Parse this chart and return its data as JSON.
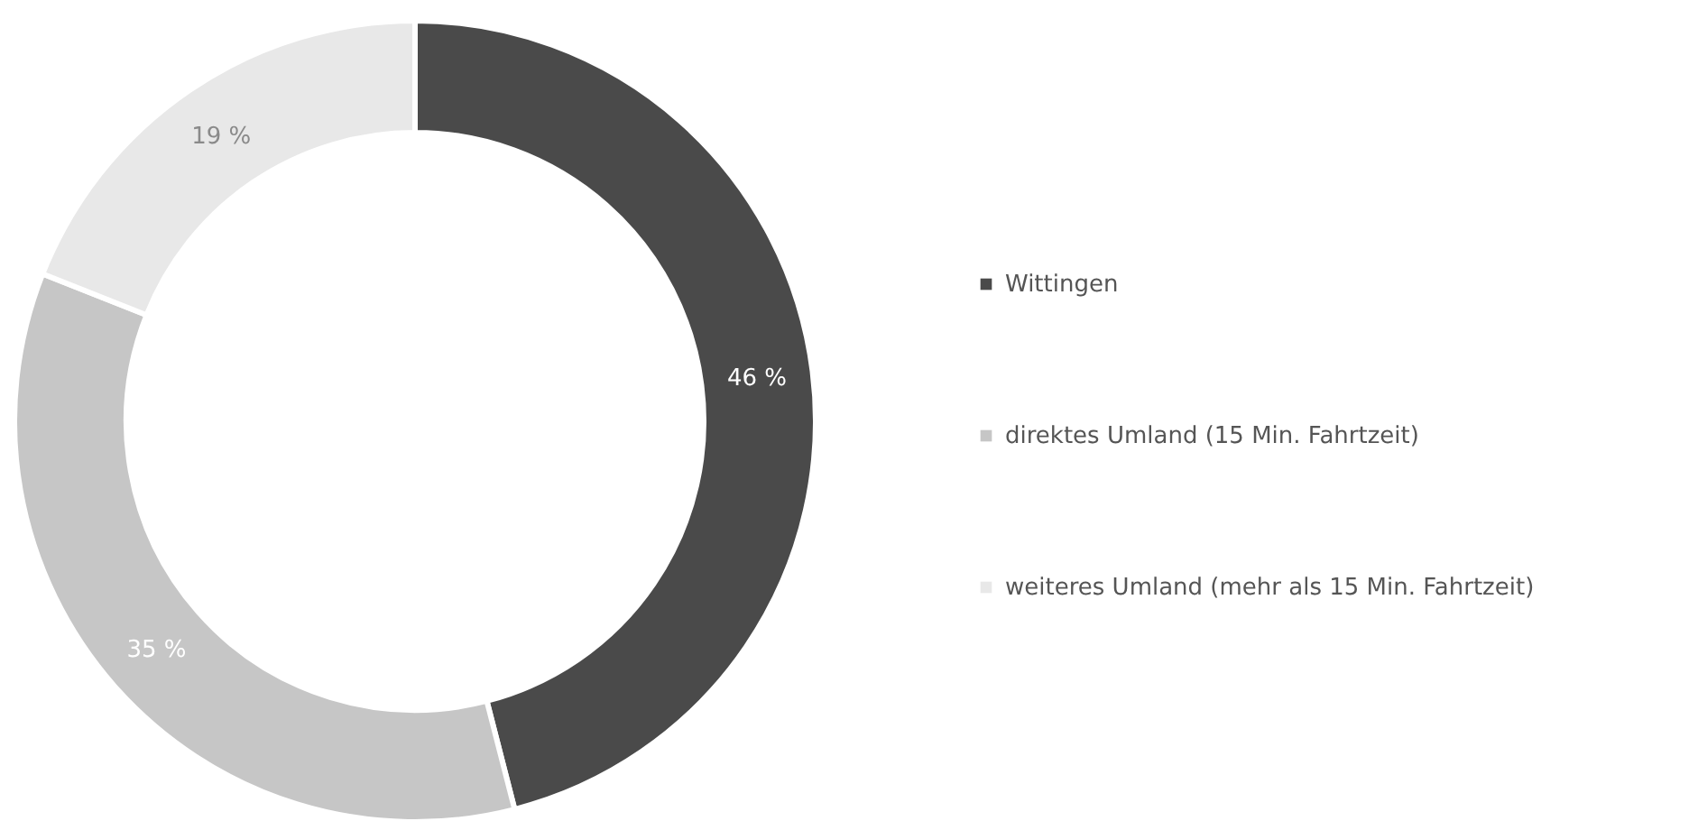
{
  "chart_data": {
    "type": "donut",
    "categories": [
      "Wittingen",
      "direktes Umland (15 Min. Fahrtzeit)",
      "weiteres Umland (mehr als 15 Min. Fahrtzeit)"
    ],
    "values": [
      46,
      35,
      19
    ],
    "colors": [
      "#4a4a4a",
      "#c6c6c6",
      "#e8e8e8"
    ],
    "value_labels": [
      "46 %",
      "35 %",
      "19 %"
    ],
    "legend": "right"
  }
}
